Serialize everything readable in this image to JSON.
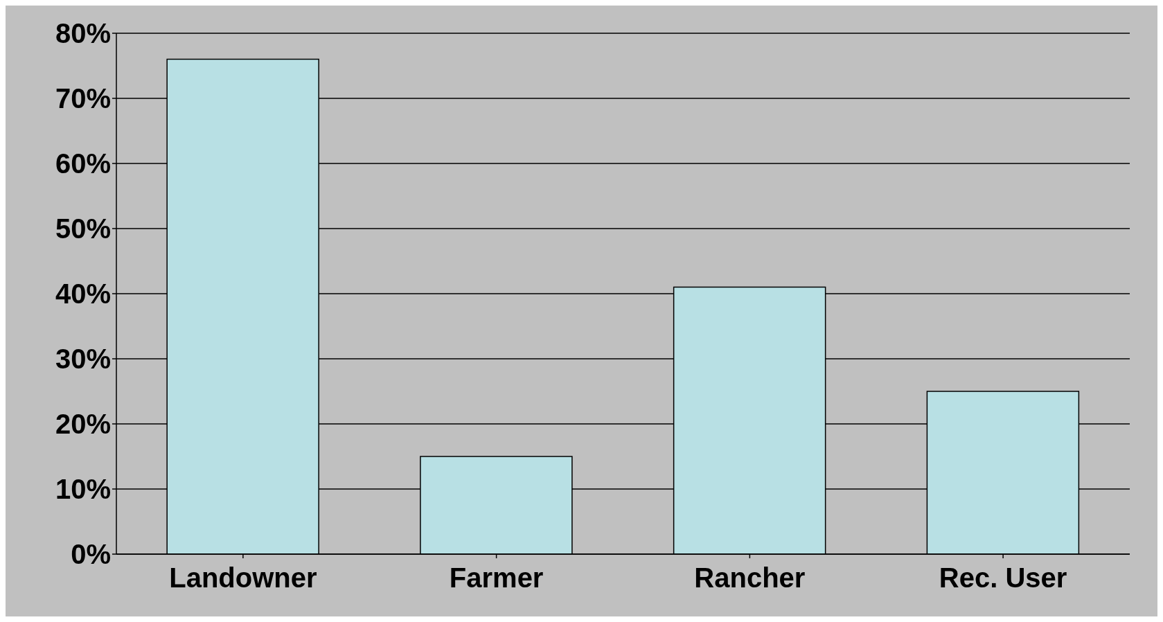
{
  "chart_data": {
    "type": "bar",
    "categories": [
      "Landowner",
      "Farmer",
      "Rancher",
      "Rec. User"
    ],
    "values": [
      76,
      15,
      41,
      25
    ],
    "color": "#b8e0e4",
    "ylim": [
      0,
      80
    ],
    "yticks": [
      {
        "value": 0,
        "label": "0%"
      },
      {
        "value": 10,
        "label": "10%"
      },
      {
        "value": 20,
        "label": "20%"
      },
      {
        "value": 30,
        "label": "30%"
      },
      {
        "value": 40,
        "label": "40%"
      },
      {
        "value": 50,
        "label": "50%"
      },
      {
        "value": 60,
        "label": "60%"
      },
      {
        "value": 70,
        "label": "70%"
      },
      {
        "value": 80,
        "label": "80%"
      }
    ],
    "grid": "y"
  }
}
